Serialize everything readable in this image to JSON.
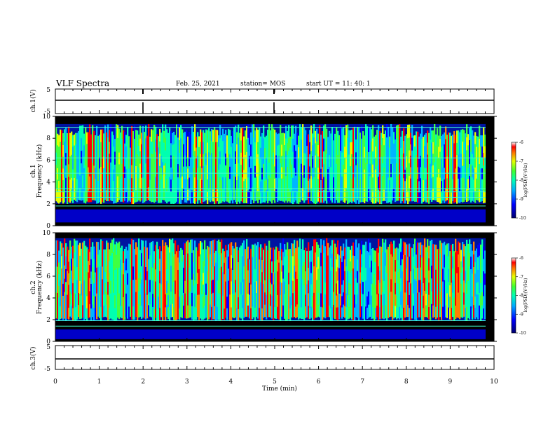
{
  "header": {
    "title": "VLF Spectra",
    "date": "Feb. 25, 2021",
    "station": "station= MOS",
    "start": "start  UT =  11: 40: 1"
  },
  "chart_data": [
    {
      "type": "line",
      "name": "ch1_waveform",
      "ylabel": "ch.1(V)",
      "ylim": [
        -5,
        5
      ],
      "yticks": [
        "5",
        "-5"
      ],
      "x": [
        0,
        10
      ],
      "values": [
        0,
        0
      ]
    },
    {
      "type": "heatmap",
      "name": "ch1_spectrogram",
      "ylabel": "ch.1",
      "ylabel2": "Frequency (kHz)",
      "ylim": [
        0,
        10
      ],
      "yticks": [
        "0",
        "2",
        "4",
        "6",
        "8",
        "10"
      ],
      "xlim": [
        0,
        10
      ],
      "colorbar": {
        "label": "log(PSD)(V²/Hz)",
        "range": [
          -10,
          -6
        ],
        "ticks": [
          "-6",
          "-7",
          "-8",
          "-9",
          "-10"
        ]
      }
    },
    {
      "type": "heatmap",
      "name": "ch2_spectrogram",
      "ylabel": "ch.2",
      "ylabel2": "Frequency (kHz)",
      "ylim": [
        0,
        10
      ],
      "yticks": [
        "0",
        "2",
        "4",
        "6",
        "8",
        "10"
      ],
      "xlim": [
        0,
        10
      ],
      "colorbar": {
        "label": "log(PSD)(V²/Hz)",
        "range": [
          -10,
          -6
        ],
        "ticks": [
          "-6",
          "-7",
          "-8",
          "-9",
          "-10"
        ]
      }
    },
    {
      "type": "line",
      "name": "ch3_waveform",
      "ylabel": "ch.3(V)",
      "ylim": [
        -5,
        5
      ],
      "yticks": [
        "5",
        "-5"
      ],
      "x": [
        0,
        10
      ],
      "values": [
        0,
        0
      ]
    }
  ],
  "xaxis": {
    "label": "Time  (min)",
    "ticks": [
      "0",
      "1",
      "2",
      "3",
      "4",
      "5",
      "6",
      "7",
      "8",
      "9",
      "10"
    ]
  },
  "colors": {
    "background": "#000000",
    "colormap": [
      "#00007a",
      "#0000ff",
      "#00b4ff",
      "#00ffb0",
      "#40ff40",
      "#e0ff00",
      "#ff8000",
      "#ff0000",
      "#ffffff"
    ]
  }
}
